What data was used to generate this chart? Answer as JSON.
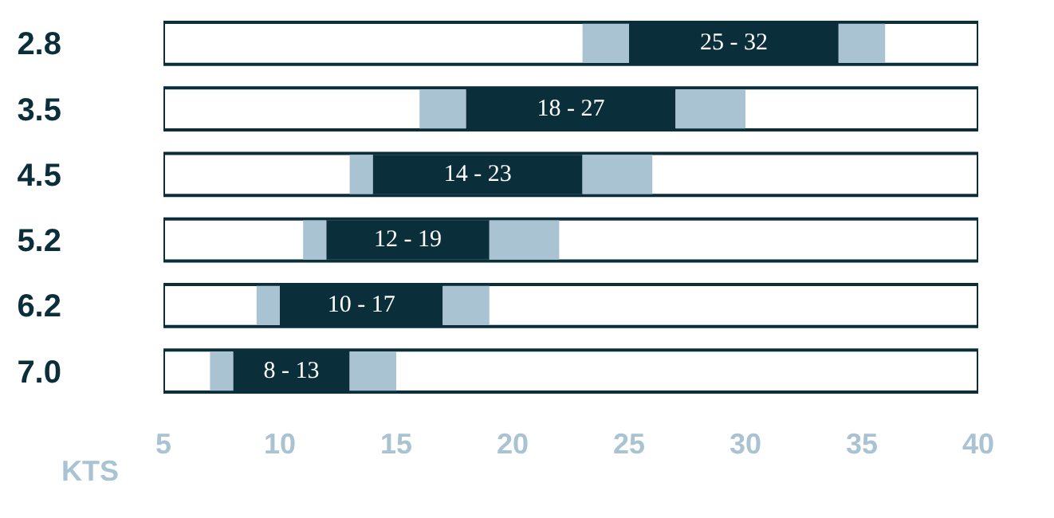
{
  "chart_data": {
    "type": "bar",
    "orientation": "horizontal",
    "xlabel": "KTS",
    "categories": [
      "2.8",
      "3.5",
      "4.5",
      "5.2",
      "6.2",
      "7.0"
    ],
    "series": [
      {
        "color": "#a9c3d3",
        "base": [
          23,
          16,
          13,
          11,
          9,
          7
        ],
        "values": [
          2,
          2,
          1,
          1,
          1,
          1
        ]
      },
      {
        "color": "#0b2e3b",
        "base": [
          25,
          18,
          14,
          12,
          10,
          8
        ],
        "values": [
          9,
          9,
          9,
          7,
          7,
          5
        ]
      },
      {
        "color": "#a9c3d3",
        "base": [
          34,
          27,
          23,
          19,
          17,
          13
        ],
        "values": [
          2,
          3,
          3,
          3,
          2,
          2
        ]
      }
    ],
    "annotations": [
      "25 - 32",
      "18 - 27",
      "14 - 23",
      "12 - 19",
      "10 - 17",
      "8 - 13"
    ],
    "xlim": [
      5,
      40
    ],
    "xticks": [
      5,
      10,
      15,
      20,
      25,
      30,
      35,
      40
    ],
    "grid": false
  }
}
